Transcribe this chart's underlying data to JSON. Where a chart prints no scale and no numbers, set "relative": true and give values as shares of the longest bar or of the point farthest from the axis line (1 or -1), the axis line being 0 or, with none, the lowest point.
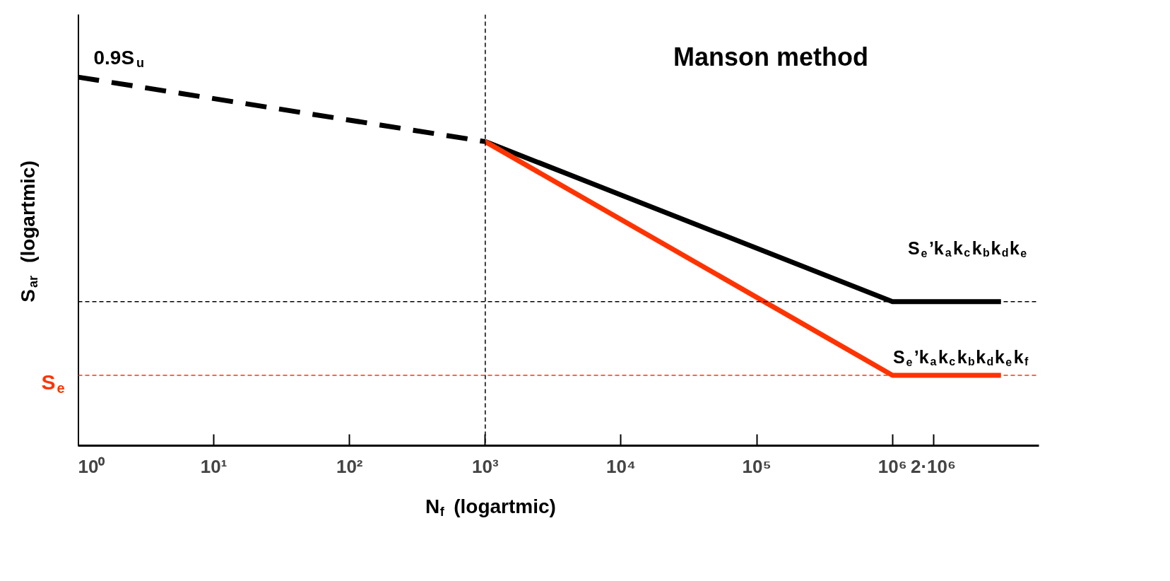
{
  "chart_data": {
    "type": "line",
    "title": "Manson method",
    "xlabel": "N$_{f}$ (logartmic)",
    "ylabel": "S$_{ar}$ (logartmic)",
    "relative": true,
    "log": "x",
    "grid": false,
    "xlim": [
      1,
      12000000
    ],
    "xticks": [
      {
        "value": 1,
        "label": "10⁰"
      },
      {
        "value": 10,
        "label": "10¹"
      },
      {
        "value": 100,
        "label": "10²"
      },
      {
        "value": 1000,
        "label": "10³"
      },
      {
        "value": 10000,
        "label": "10⁴"
      },
      {
        "value": 100000,
        "label": "10⁵"
      },
      {
        "value": 1000000,
        "label": "10⁶"
      },
      {
        "value": 2000000,
        "label": "2·10⁶"
      }
    ],
    "series": [
      {
        "color": "#000000",
        "line_style": "dashed",
        "x": [
          1,
          1000
        ],
        "values": [
          1,
          0.825
        ]
      },
      {
        "name": "S$_{e}$’k$_{a}$k$_{c}$k$_{b}$k$_{d}$k$_{e}$",
        "color": "#000000",
        "line_style": "solid",
        "x": [
          1000,
          1000000,
          6300000
        ],
        "values": [
          0.825,
          0.391,
          0.391
        ]
      },
      {
        "name": "S$_{e}$’k$_{a}$k$_{c}$k$_{b}$k$_{d}$k$_{e}$k$_{f}$",
        "color": "#ff3300",
        "line_style": "solid",
        "x": [
          1000,
          1000000,
          6300000
        ],
        "values": [
          0.825,
          0.191,
          0.191
        ]
      }
    ],
    "ref_lines": [
      {
        "axis": "y",
        "value": 0.391,
        "color": "#000000",
        "line_style": "dashed"
      },
      {
        "axis": "y",
        "value": 0.191,
        "label": "S$_{e}$",
        "color": "#ff3300",
        "line_style": "dashed"
      },
      {
        "axis": "x",
        "value": 1000,
        "color": "#000000",
        "line_style": "dashed"
      }
    ],
    "annotations": [
      {
        "text": "0.9S$_{u}$",
        "x": 1,
        "y": 1
      }
    ]
  }
}
